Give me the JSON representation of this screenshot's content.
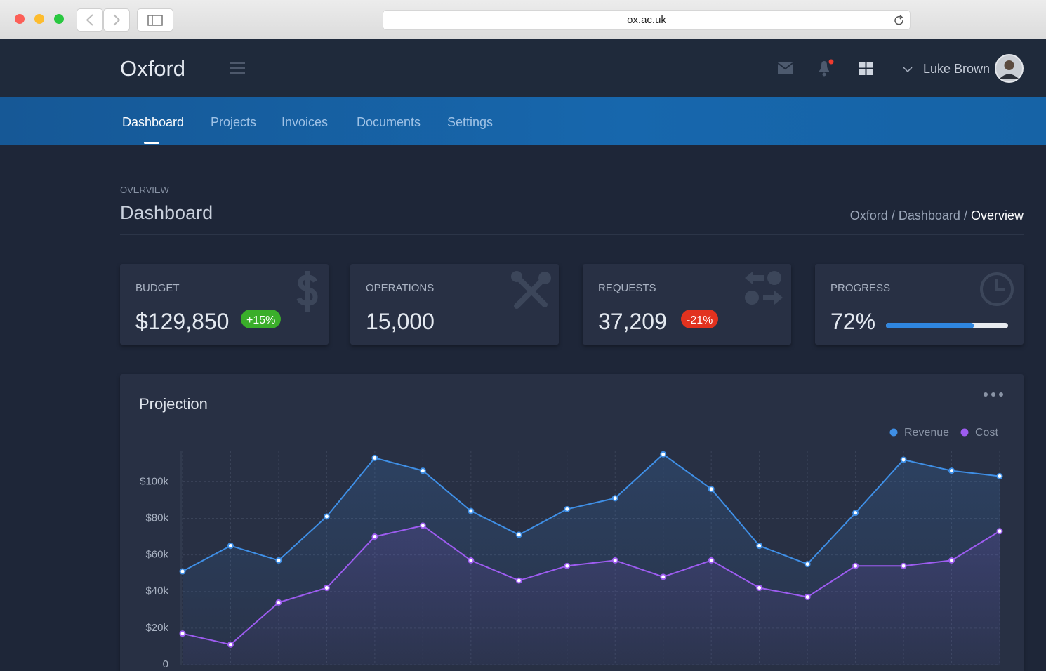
{
  "browser": {
    "url": "ox.ac.uk"
  },
  "header": {
    "brand": "Oxford",
    "user": "Luke Brown"
  },
  "tabs": [
    "Dashboard",
    "Projects",
    "Invoices",
    "Documents",
    "Settings"
  ],
  "page": {
    "eyebrow": "OVERVIEW",
    "title": "Dashboard",
    "breadcrumb": [
      "Oxford",
      "/",
      "Dashboard",
      "/",
      "Overview"
    ]
  },
  "cards": [
    {
      "label": "BUDGET",
      "value": "$129,850",
      "badge": "+15%"
    },
    {
      "label": "OPERATIONS",
      "value": "15,000"
    },
    {
      "label": "REQUESTS",
      "value": "37,209",
      "badge": "-21%"
    },
    {
      "label": "PROGRESS",
      "value": 72,
      "value_label": "72%"
    }
  ],
  "chart_data": {
    "type": "line",
    "title": "Projection",
    "categories": [
      null,
      null,
      null,
      null,
      null,
      null,
      null,
      null,
      null,
      null,
      null,
      null,
      null,
      null,
      null,
      null,
      null,
      null
    ],
    "series": [
      {
        "name": "Revenue",
        "color": "#3f8fe6",
        "values": [
          51000,
          65000,
          57000,
          81000,
          113000,
          106000,
          84000,
          71000,
          85000,
          91000,
          115000,
          96000,
          65000,
          55000,
          83000,
          112000,
          106000,
          103000
        ]
      },
      {
        "name": "Cost",
        "color": "#9d5cf0",
        "values": [
          17000,
          11000,
          34000,
          42000,
          70000,
          76000,
          57000,
          46000,
          54000,
          57000,
          48000,
          57000,
          42000,
          37000,
          54000,
          54000,
          57000,
          73000
        ]
      }
    ],
    "ylim": [
      0,
      117000
    ],
    "yticks": [
      0,
      {
        "value": 20000,
        "label": "$20k"
      },
      {
        "value": 40000,
        "label": "$40k"
      },
      {
        "value": 60000,
        "label": "$60k"
      },
      {
        "value": 80000,
        "label": "$80k"
      },
      {
        "value": 100000,
        "label": "$100k"
      }
    ],
    "grid": true
  }
}
